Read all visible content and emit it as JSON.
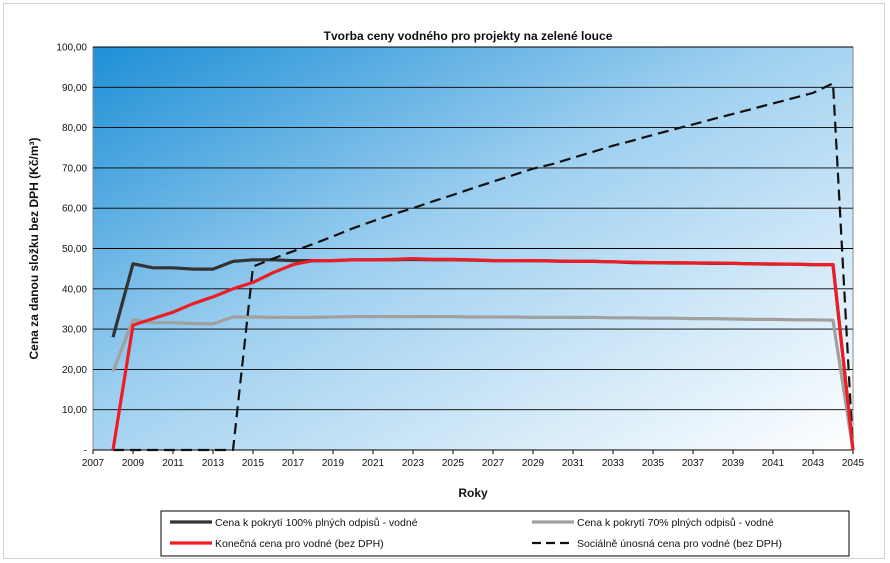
{
  "chart_data": {
    "type": "line",
    "title": "Tvorba ceny vodného pro projekty  na zelené louce",
    "xlabel": "Roky",
    "ylabel": "Cena za danou složku bez DPH  (Kč/m³)",
    "xlim": [
      2007,
      2045
    ],
    "ylim": [
      0,
      100
    ],
    "x_ticks": [
      "2007",
      "2009",
      "2011",
      "2013",
      "2015",
      "2017",
      "2019",
      "2021",
      "2023",
      "2025",
      "2027",
      "2029",
      "2031",
      "2033",
      "2035",
      "2037",
      "2039",
      "2041",
      "2043",
      "2045"
    ],
    "y_ticks": [
      "-",
      "10,00",
      "20,00",
      "30,00",
      "40,00",
      "50,00",
      "60,00",
      "70,00",
      "80,00",
      "90,00",
      "100,00"
    ],
    "grid": true,
    "legend_position": "bottom",
    "series": [
      {
        "name": "Cena k pokrytí 100% plných odpisů - vodné",
        "color": "#333333",
        "style": "solid",
        "x": [
          2008,
          2009,
          2010,
          2011,
          2012,
          2013,
          2014,
          2015,
          2016,
          2017,
          2018,
          2019,
          2020,
          2021,
          2022,
          2023,
          2024,
          2025,
          2026,
          2027,
          2028,
          2029,
          2030,
          2031,
          2032,
          2033,
          2034,
          2035,
          2036,
          2037,
          2038,
          2039,
          2040,
          2041,
          2042,
          2043,
          2044,
          2045
        ],
        "y": [
          28,
          46.2,
          45.2,
          45.2,
          44.9,
          44.9,
          46.8,
          47.2,
          47.2,
          47,
          47,
          47,
          47.2,
          47.2,
          47.2,
          47.3,
          47.2,
          47.2,
          47.1,
          47,
          47,
          47,
          46.9,
          46.8,
          46.8,
          46.7,
          46.5,
          46.5,
          46.4,
          46.4,
          46.3,
          46.3,
          46.2,
          46.1,
          46.1,
          46,
          46,
          0
        ]
      },
      {
        "name": "Cena k pokrytí 70% plných odpisů - vodné",
        "color": "#a0a0a0",
        "style": "solid",
        "x": [
          2008,
          2009,
          2010,
          2011,
          2012,
          2013,
          2014,
          2015,
          2016,
          2017,
          2018,
          2019,
          2020,
          2021,
          2022,
          2023,
          2024,
          2025,
          2026,
          2027,
          2028,
          2029,
          2030,
          2031,
          2032,
          2033,
          2034,
          2035,
          2036,
          2037,
          2038,
          2039,
          2040,
          2041,
          2042,
          2043,
          2044,
          2045
        ],
        "y": [
          19.5,
          32.3,
          31.6,
          31.6,
          31.4,
          31.3,
          33,
          33,
          32.9,
          32.9,
          32.9,
          33,
          33.1,
          33.1,
          33.1,
          33.1,
          33.1,
          33.1,
          33,
          33,
          33,
          32.9,
          32.9,
          32.9,
          32.9,
          32.8,
          32.8,
          32.7,
          32.7,
          32.6,
          32.6,
          32.5,
          32.4,
          32.4,
          32.3,
          32.3,
          32.2,
          0
        ]
      },
      {
        "name": "Konečná cena pro vodné (bez DPH)",
        "color": "#ee1c25",
        "style": "solid",
        "x": [
          2008,
          2009,
          2010,
          2011,
          2012,
          2013,
          2014,
          2015,
          2016,
          2017,
          2018,
          2019,
          2020,
          2021,
          2022,
          2023,
          2024,
          2025,
          2026,
          2027,
          2028,
          2029,
          2030,
          2031,
          2032,
          2033,
          2034,
          2035,
          2036,
          2037,
          2038,
          2039,
          2040,
          2041,
          2042,
          2043,
          2044,
          2045
        ],
        "y": [
          0,
          31,
          32.6,
          34.2,
          36.3,
          38,
          40,
          41.6,
          44,
          46,
          47,
          47,
          47.2,
          47.2,
          47.3,
          47.5,
          47.3,
          47.3,
          47.2,
          47,
          47,
          47,
          46.9,
          46.8,
          46.8,
          46.7,
          46.6,
          46.5,
          46.5,
          46.4,
          46.4,
          46.3,
          46.2,
          46.2,
          46.1,
          46,
          46,
          0
        ]
      },
      {
        "name": "Sociálně únosná cena pro vodné (bez DPH)",
        "color": "#111111",
        "style": "dashed",
        "x": [
          2008,
          2013,
          2014,
          2015,
          2016,
          2017,
          2018,
          2019,
          2020,
          2021,
          2022,
          2023,
          2024,
          2025,
          2026,
          2027,
          2028,
          2029,
          2030,
          2031,
          2032,
          2033,
          2034,
          2035,
          2036,
          2037,
          2038,
          2039,
          2040,
          2041,
          2042,
          2043,
          2044,
          2045
        ],
        "y": [
          0,
          0,
          0,
          45.5,
          47.5,
          49.3,
          51.1,
          53,
          55,
          56.8,
          58.5,
          60,
          61.7,
          63.3,
          65,
          66.6,
          68.2,
          69.8,
          71,
          72.5,
          74,
          75.5,
          76.8,
          78.2,
          79.5,
          80.8,
          82.1,
          83.4,
          84.7,
          86,
          87.3,
          88.6,
          91,
          0
        ]
      }
    ]
  }
}
